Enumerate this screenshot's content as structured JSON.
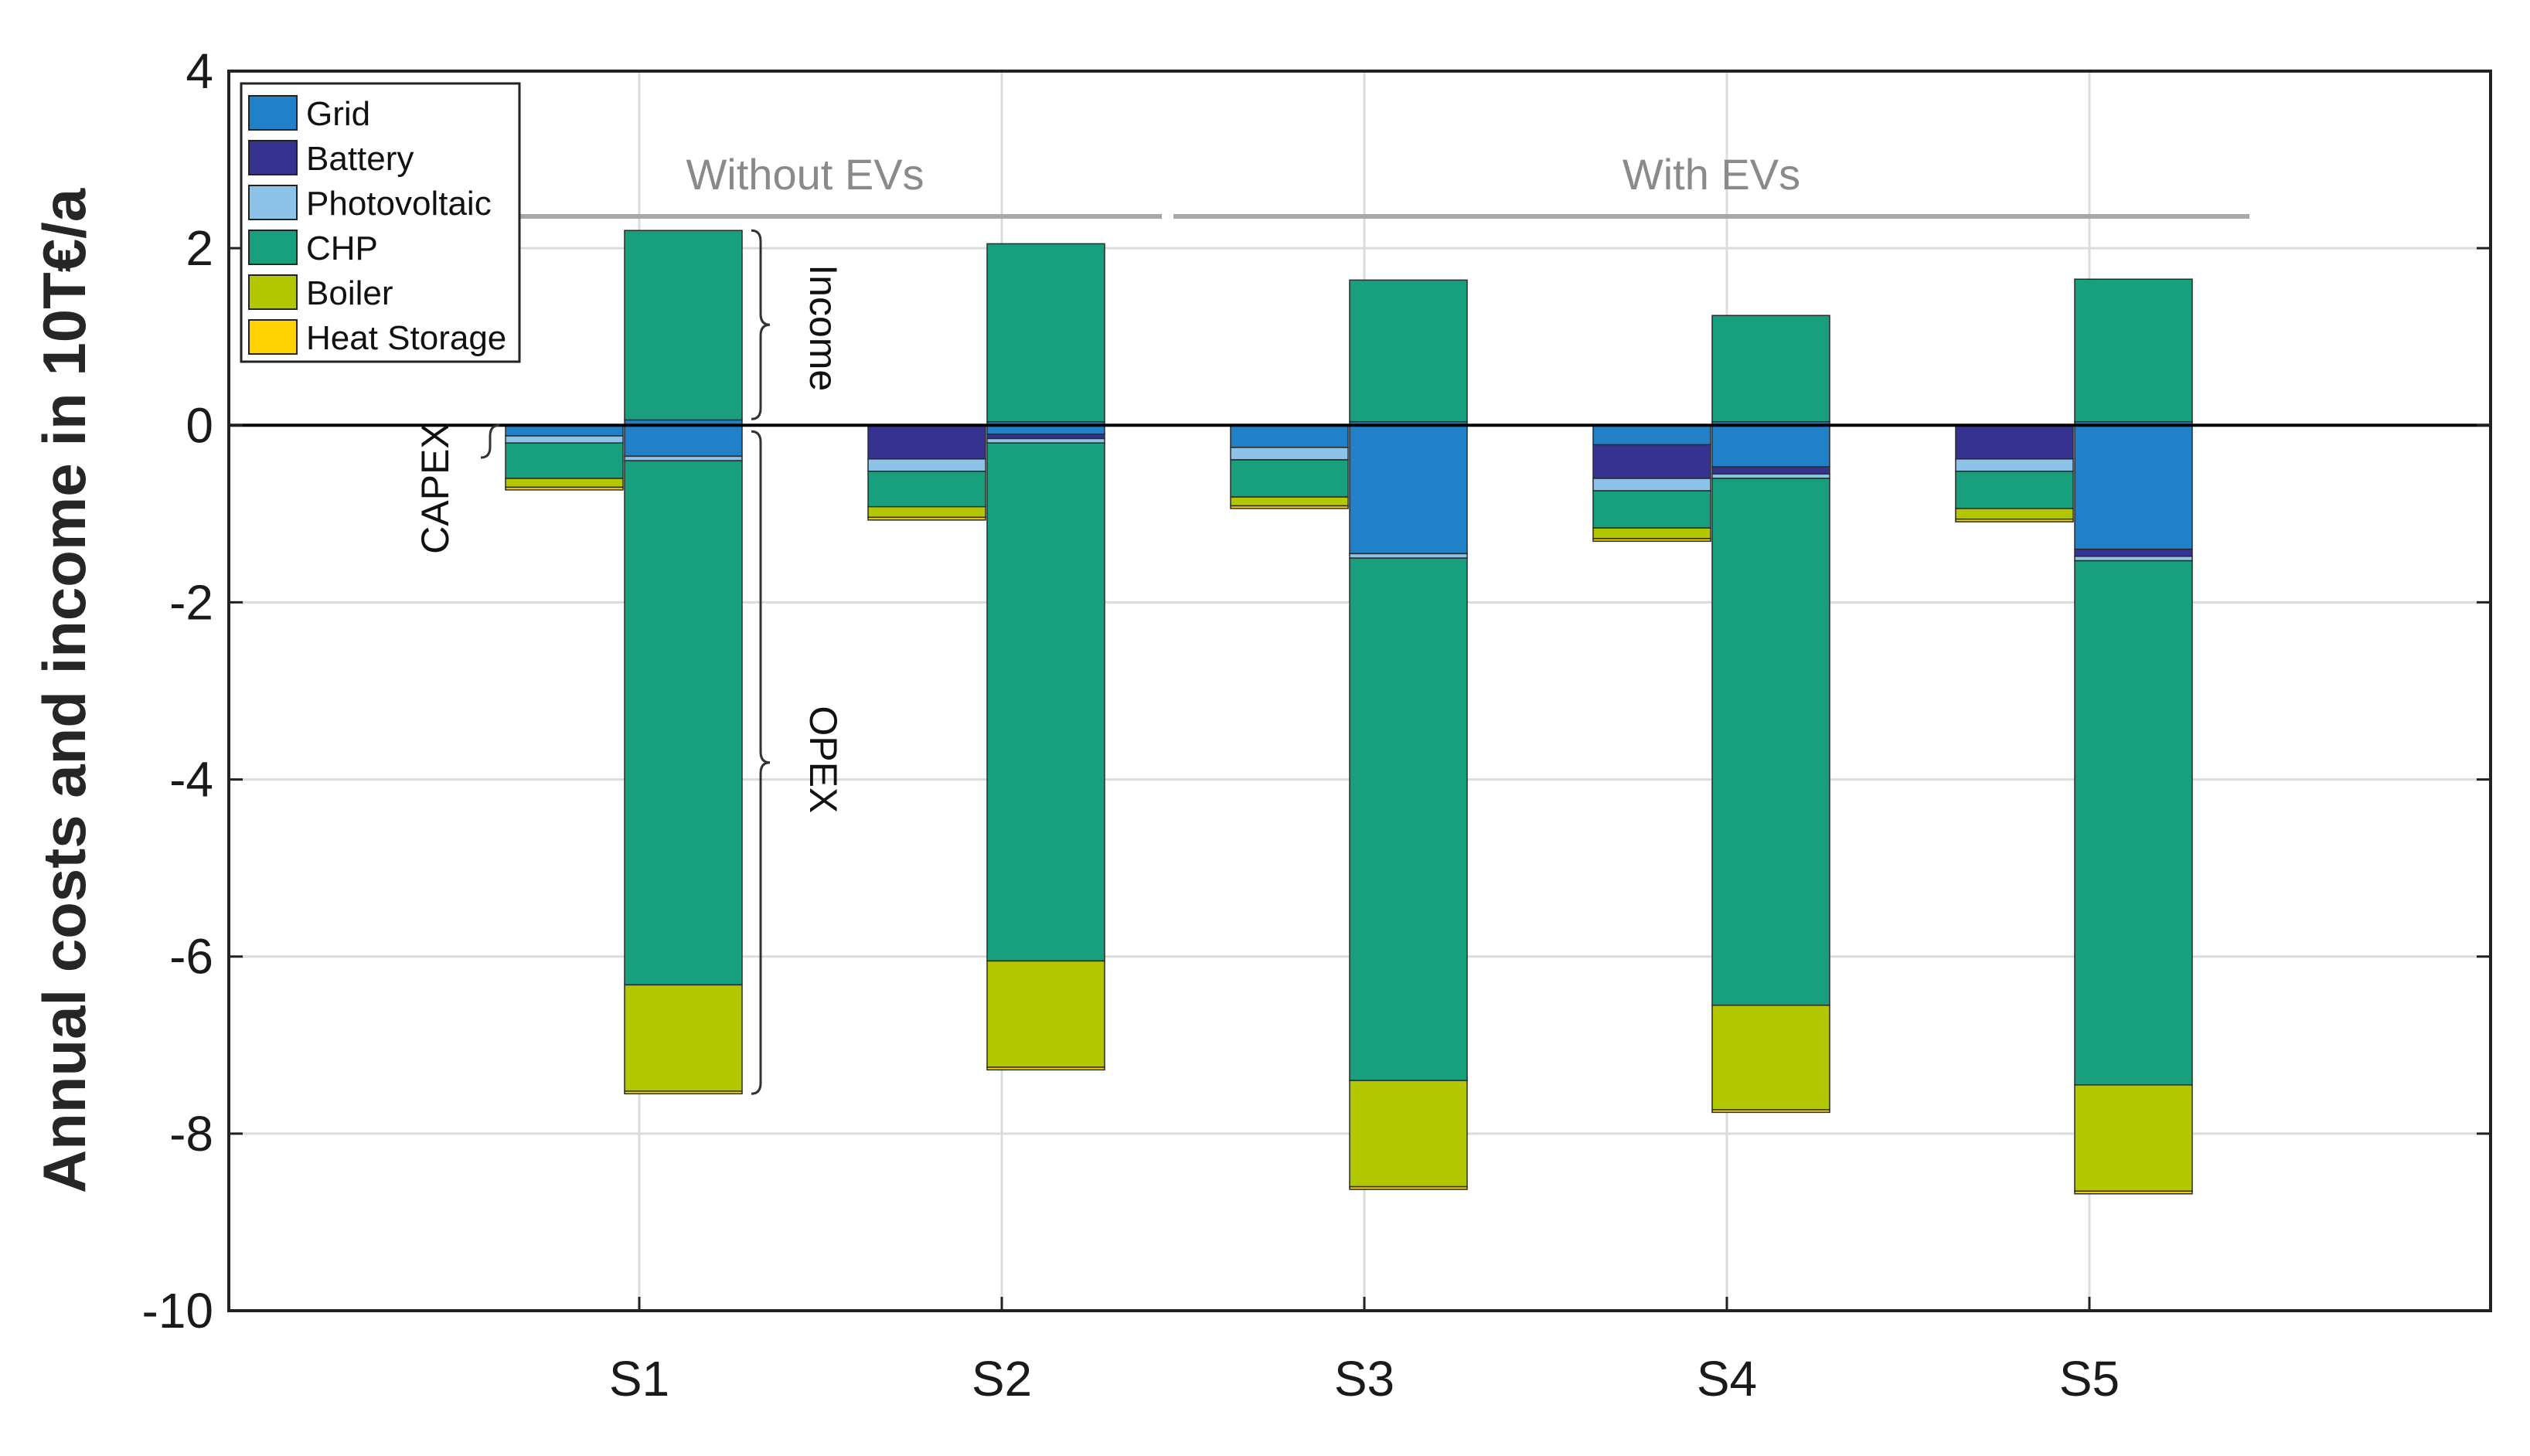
{
  "chart_data": {
    "type": "bar",
    "stacked": true,
    "ylabel": "Annual costs and income in 10T€/a",
    "xlabel": "",
    "ylim": [
      -10,
      4
    ],
    "yticks": [
      4,
      2,
      0,
      -2,
      -4,
      -6,
      -8,
      -10
    ],
    "categories": [
      "S1",
      "S2",
      "S3",
      "S4",
      "S5"
    ],
    "grid": true,
    "legend_position": "top-left",
    "legend": [
      "Grid",
      "Battery",
      "Photovoltaic",
      "CHP",
      "Boiler",
      "Heat Storage"
    ],
    "colors": {
      "Grid": "#2080c8",
      "Battery": "#35338f",
      "Photovoltaic": "#8dc3e8",
      "CHP": "#18a07e",
      "Boiler": "#b2c700",
      "Heat Storage": "#ffd200"
    },
    "capex": {
      "Grid": [
        -0.12,
        0.0,
        -0.25,
        -0.22,
        0.0
      ],
      "Battery": [
        0.0,
        -0.38,
        0.0,
        -0.38,
        -0.38
      ],
      "Photovoltaic": [
        -0.08,
        -0.14,
        -0.14,
        -0.14,
        -0.14
      ],
      "CHP": [
        -0.4,
        -0.4,
        -0.42,
        -0.42,
        -0.42
      ],
      "Boiler": [
        -0.1,
        -0.12,
        -0.1,
        -0.12,
        -0.12
      ],
      "Heat Storage": [
        -0.03,
        -0.03,
        -0.03,
        -0.03,
        -0.03
      ]
    },
    "opex": {
      "Grid": [
        -0.35,
        -0.1,
        -1.45,
        -0.47,
        -1.4
      ],
      "Battery": [
        0.0,
        -0.05,
        0.0,
        -0.08,
        -0.08
      ],
      "Photovoltaic": [
        -0.05,
        -0.05,
        -0.05,
        -0.05,
        -0.05
      ],
      "CHP": [
        -5.92,
        -5.85,
        -5.9,
        -5.95,
        -5.92
      ],
      "Boiler": [
        -1.2,
        -1.2,
        -1.2,
        -1.18,
        -1.2
      ],
      "Heat Storage": [
        -0.03,
        -0.03,
        -0.03,
        -0.03,
        -0.03
      ]
    },
    "income": {
      "Grid": [
        0.06,
        0.04,
        0.04,
        0.04,
        0.04
      ],
      "CHP": [
        2.14,
        2.01,
        1.6,
        1.2,
        1.61
      ]
    },
    "groups": [
      {
        "label": "Without EVs",
        "from": 0,
        "to": 1
      },
      {
        "label": "With EVs",
        "from": 2,
        "to": 4
      }
    ],
    "annotations": {
      "capex": "CAPEX",
      "opex": "OPEX",
      "income": "Income"
    }
  }
}
